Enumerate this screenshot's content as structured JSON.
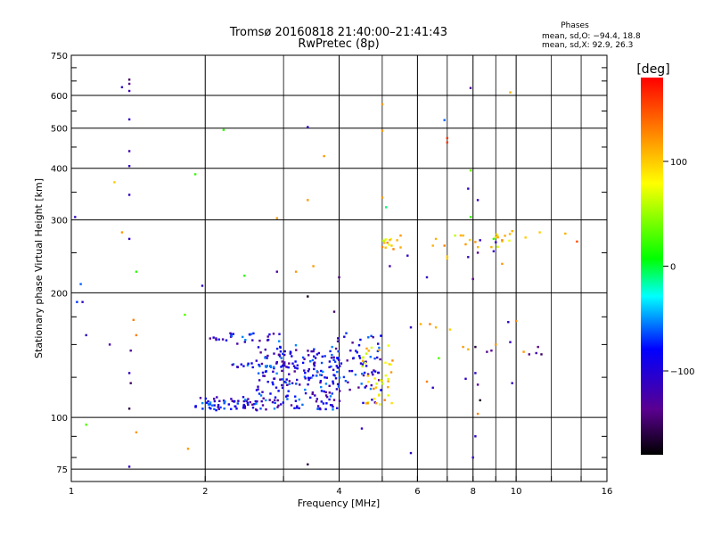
{
  "chart_data": {
    "type": "scatter",
    "title": "Tromsø 20160818 21:40:00–21:41:43",
    "subtitle": "RwPretec (8p)",
    "xlabel": "Frequency [MHz]",
    "ylabel": "Stationary phase Virtual Height [km]",
    "x_scale": "log2",
    "y_scale": "log",
    "xlim": [
      1,
      16
    ],
    "ylim": [
      70,
      750
    ],
    "x_ticks": [
      1,
      2,
      4,
      6,
      8,
      10,
      16
    ],
    "x_minor_ticks": [
      3,
      5,
      7,
      9,
      12,
      14
    ],
    "y_ticks": [
      75,
      100,
      200,
      300,
      400,
      500,
      600,
      750
    ],
    "y_minor_ticks": [
      80,
      90,
      125,
      150,
      175,
      250,
      350,
      450,
      550,
      650,
      700
    ],
    "grid": true,
    "phase_box": {
      "title": "Phases",
      "line1": "mean, sd,O: −94.4, 18.8",
      "line2": "mean, sd,X:  92.9, 26.3"
    },
    "colorbar": {
      "label": "[deg]",
      "range": [
        -180,
        180
      ],
      "ticks": [
        "100",
        "0",
        "−100"
      ],
      "tick_values": [
        100,
        0,
        -100
      ],
      "colormap": "rainbow (black → purple → blue → cyan → green → yellow → red)"
    },
    "clusters_ordinary_O_mode": {
      "phase_deg": -94.4,
      "groups": [
        {
          "x_range": [
            1.9,
            2.6
          ],
          "y_range": [
            104,
            112
          ],
          "count": 60
        },
        {
          "x_range": [
            2.6,
            4.0
          ],
          "y_range": [
            104,
            150
          ],
          "count": 220
        },
        {
          "x_range": [
            3.9,
            5.0
          ],
          "y_range": [
            108,
            160
          ],
          "count": 70
        },
        {
          "x_range": [
            2.05,
            3.0
          ],
          "y_range": [
            150,
            160
          ],
          "count": 30
        },
        {
          "x_range": [
            2.3,
            3.2
          ],
          "y_range": [
            132,
            136
          ],
          "count": 25
        }
      ]
    },
    "clusters_extraordinary_X_mode": {
      "phase_deg": 92.9,
      "groups": [
        {
          "x_range": [
            4.5,
            5.3
          ],
          "y_range": [
            107,
            150
          ],
          "count": 40
        },
        {
          "x_range": [
            5.0,
            5.5
          ],
          "y_range": [
            255,
            270
          ],
          "count": 10
        },
        {
          "x_range": [
            6.5,
            10.5
          ],
          "y_range": [
            258,
            280
          ],
          "count": 14
        }
      ]
    },
    "points": [
      [
        1.35,
        655,
        -150
      ],
      [
        1.35,
        640,
        -140
      ],
      [
        1.3,
        628,
        -110
      ],
      [
        1.35,
        615,
        -120
      ],
      [
        1.35,
        525,
        -110
      ],
      [
        1.35,
        440,
        -120
      ],
      [
        1.35,
        405,
        -110
      ],
      [
        1.35,
        345,
        -110
      ],
      [
        1.35,
        270,
        -110
      ],
      [
        1.02,
        305,
        -110
      ],
      [
        1.25,
        370,
        100
      ],
      [
        1.3,
        280,
        120
      ],
      [
        1.4,
        225,
        20
      ],
      [
        1.05,
        210,
        -60
      ],
      [
        1.03,
        190,
        -70
      ],
      [
        1.06,
        190,
        -110
      ],
      [
        1.08,
        158,
        -110
      ],
      [
        1.22,
        150,
        -120
      ],
      [
        1.38,
        172,
        130
      ],
      [
        1.4,
        158,
        130
      ],
      [
        1.36,
        145,
        -130
      ],
      [
        1.35,
        128,
        -110
      ],
      [
        1.36,
        121,
        -150
      ],
      [
        1.35,
        105,
        -160
      ],
      [
        1.08,
        96,
        30
      ],
      [
        1.4,
        92,
        120
      ],
      [
        1.35,
        76,
        -110
      ],
      [
        1.83,
        84,
        120
      ],
      [
        1.8,
        177,
        30
      ],
      [
        1.9,
        387,
        20
      ],
      [
        1.97,
        208,
        -110
      ],
      [
        2.2,
        495,
        20
      ],
      [
        2.45,
        220,
        20
      ],
      [
        2.9,
        303,
        120
      ],
      [
        3.4,
        503,
        -110
      ],
      [
        3.7,
        428,
        120
      ],
      [
        3.4,
        335,
        120
      ],
      [
        3.5,
        232,
        120
      ],
      [
        3.2,
        225,
        120
      ],
      [
        2.9,
        225,
        -130
      ],
      [
        3.4,
        196,
        -170
      ],
      [
        4.0,
        218,
        -150
      ],
      [
        3.9,
        180,
        -150
      ],
      [
        3.4,
        77,
        -160
      ],
      [
        4.5,
        94,
        -110
      ],
      [
        5.8,
        82,
        -110
      ],
      [
        5.0,
        571,
        120
      ],
      [
        5.0,
        493,
        120
      ],
      [
        5.0,
        340,
        120
      ],
      [
        5.1,
        322,
        -10
      ],
      [
        6.9,
        523,
        -60
      ],
      [
        7.0,
        473,
        160
      ],
      [
        7.0,
        462,
        160
      ],
      [
        7.9,
        395,
        40
      ],
      [
        7.8,
        357,
        -110
      ],
      [
        8.2,
        335,
        -110
      ],
      [
        7.9,
        305,
        20
      ],
      [
        7.9,
        625,
        -130
      ],
      [
        9.7,
        610,
        110
      ],
      [
        8.0,
        80,
        -110
      ],
      [
        8.1,
        90,
        -110
      ],
      [
        8.2,
        102,
        130
      ],
      [
        8.1,
        128,
        -110
      ],
      [
        8.2,
        120,
        -130
      ],
      [
        8.3,
        110,
        -170
      ],
      [
        6.6,
        270,
        110
      ],
      [
        6.5,
        260,
        110
      ],
      [
        6.9,
        260,
        130
      ],
      [
        7.0,
        245,
        100
      ],
      [
        7.6,
        275,
        110
      ],
      [
        7.7,
        262,
        120
      ],
      [
        8.3,
        268,
        -110
      ],
      [
        8.9,
        270,
        20
      ],
      [
        9.0,
        265,
        -110
      ],
      [
        8.8,
        258,
        110
      ],
      [
        9.3,
        268,
        130
      ],
      [
        9.8,
        282,
        110
      ],
      [
        10.5,
        272,
        100
      ],
      [
        11.3,
        280,
        100
      ],
      [
        12.9,
        278,
        110
      ],
      [
        13.7,
        266,
        150
      ],
      [
        8.9,
        252,
        -110
      ],
      [
        8.2,
        250,
        -140
      ],
      [
        7.8,
        244,
        -110
      ],
      [
        6.3,
        218,
        -110
      ],
      [
        7.0,
        242,
        100
      ],
      [
        8.0,
        216,
        -140
      ],
      [
        9.3,
        235,
        120
      ],
      [
        5.7,
        246,
        -110
      ],
      [
        5.2,
        232,
        -120
      ],
      [
        5.25,
        260,
        100
      ],
      [
        5.4,
        268,
        110
      ],
      [
        5.5,
        275,
        120
      ],
      [
        5.0,
        258,
        130
      ],
      [
        5.3,
        255,
        130
      ],
      [
        6.1,
        168,
        110
      ],
      [
        6.4,
        168,
        130
      ],
      [
        6.6,
        165,
        110
      ],
      [
        7.1,
        163,
        100
      ],
      [
        7.6,
        148,
        120
      ],
      [
        7.8,
        146,
        110
      ],
      [
        8.1,
        148,
        -160
      ],
      [
        8.6,
        144,
        -140
      ],
      [
        8.8,
        145,
        -130
      ],
      [
        9.6,
        170,
        -110
      ],
      [
        9.7,
        152,
        -110
      ],
      [
        10.0,
        171,
        130
      ],
      [
        10.4,
        144,
        120
      ],
      [
        10.7,
        142,
        -140
      ],
      [
        11.2,
        148,
        -140
      ],
      [
        11.4,
        142,
        -150
      ],
      [
        11.1,
        143,
        -120
      ],
      [
        9.8,
        121,
        -110
      ],
      [
        6.7,
        139,
        30
      ],
      [
        6.3,
        122,
        130
      ],
      [
        6.5,
        118,
        -110
      ],
      [
        7.7,
        124,
        -110
      ],
      [
        9.0,
        150,
        120
      ],
      [
        5.8,
        165,
        -110
      ]
    ]
  }
}
